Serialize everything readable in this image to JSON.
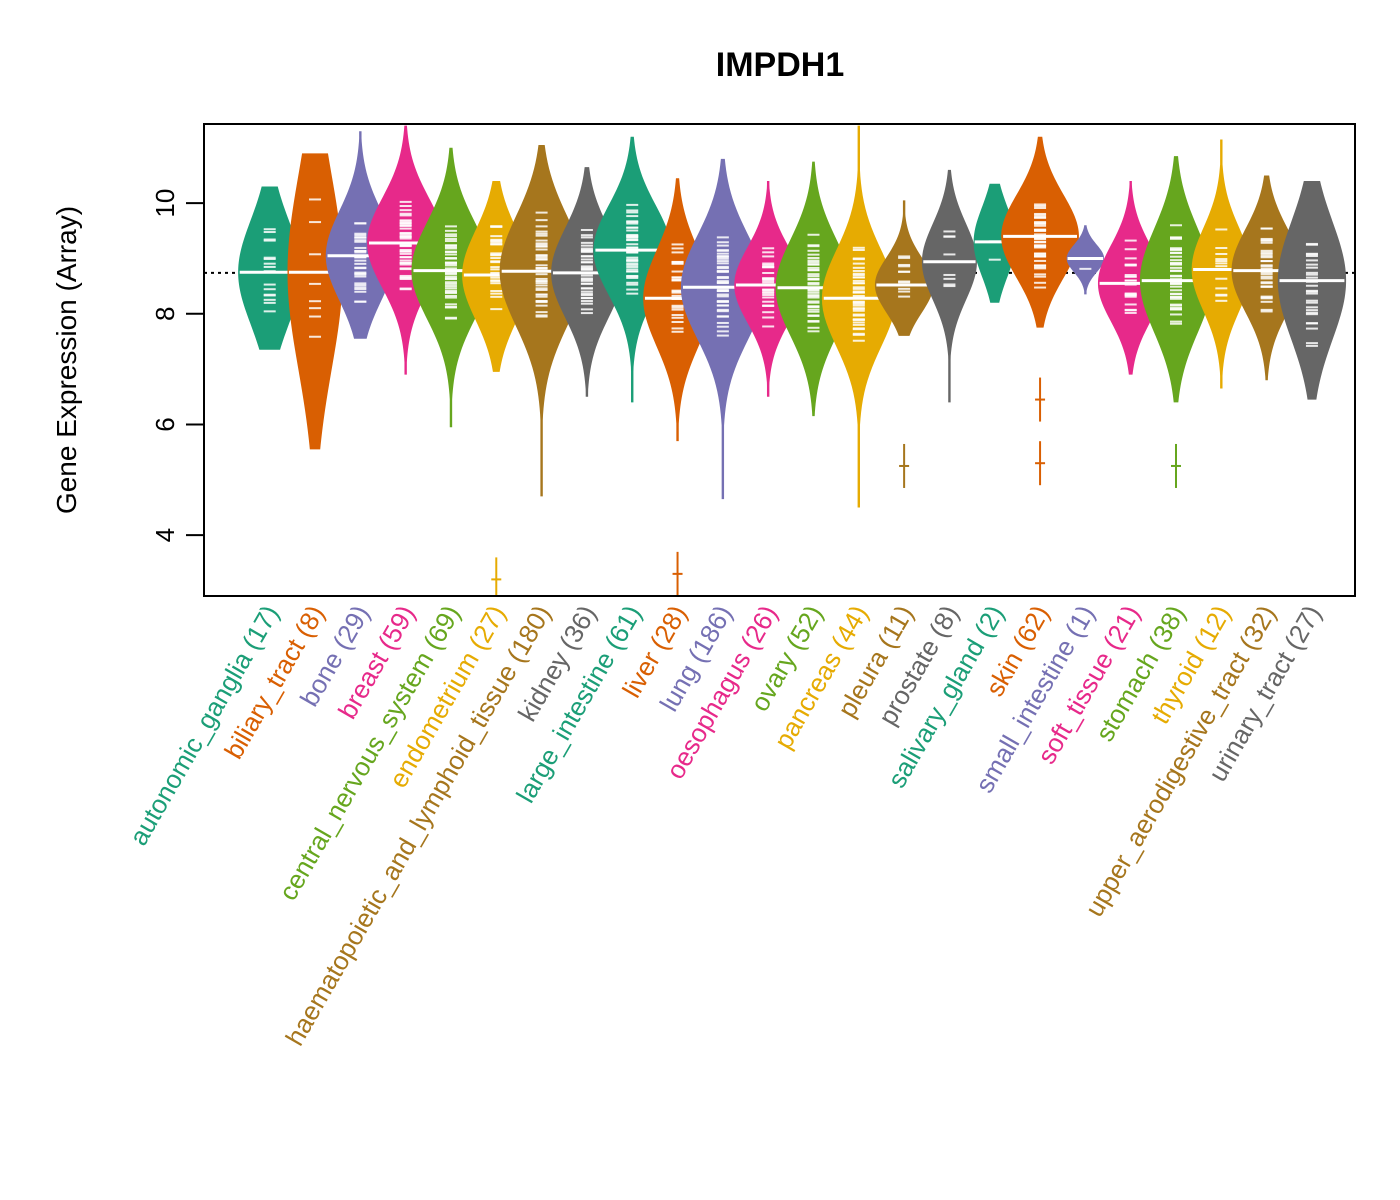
{
  "chart_data": {
    "type": "violin",
    "title": "IMPDH1",
    "xlabel": "",
    "ylabel": "Gene Expression (Array)",
    "ylim": [
      2.9,
      11.43
    ],
    "yticks": [
      4,
      6,
      8,
      10
    ],
    "reference_line": 8.74,
    "grid": false,
    "legend": "none",
    "categories": [
      {
        "name": "autonomic_ganglia",
        "n": 17,
        "color": "#1B9E77",
        "median": 8.75,
        "min": 7.35,
        "max": 10.3,
        "q_low": 8.0,
        "q_high": 9.5,
        "outliers": []
      },
      {
        "name": "biliary_tract",
        "n": 8,
        "color": "#D95F02",
        "median": 8.75,
        "min": 5.55,
        "max": 10.9,
        "q_low": 7.2,
        "q_high": 10.0,
        "outliers": []
      },
      {
        "name": "bone",
        "n": 29,
        "color": "#7570B3",
        "median": 9.05,
        "min": 7.55,
        "max": 11.3,
        "q_low": 8.3,
        "q_high": 9.6,
        "outliers": []
      },
      {
        "name": "breast",
        "n": 59,
        "color": "#E7298A",
        "median": 9.28,
        "min": 6.9,
        "max": 11.4,
        "q_low": 8.6,
        "q_high": 9.9,
        "outliers": []
      },
      {
        "name": "central_nervous_system",
        "n": 69,
        "color": "#66A61E",
        "median": 8.78,
        "min": 5.95,
        "max": 11.0,
        "q_low": 8.1,
        "q_high": 9.5,
        "outliers": []
      },
      {
        "name": "endometrium",
        "n": 27,
        "color": "#E6AB02",
        "median": 8.7,
        "min": 6.95,
        "max": 10.4,
        "q_low": 8.3,
        "q_high": 9.6,
        "outliers": [
          3.2
        ]
      },
      {
        "name": "haematopoietic_and_lymphoid_tissue",
        "n": 180,
        "color": "#A6761D",
        "median": 8.77,
        "min": 4.7,
        "max": 11.05,
        "q_low": 8.0,
        "q_high": 9.6,
        "outliers": []
      },
      {
        "name": "kidney",
        "n": 36,
        "color": "#666666",
        "median": 8.74,
        "min": 6.5,
        "max": 10.65,
        "q_low": 8.1,
        "q_high": 9.4,
        "outliers": []
      },
      {
        "name": "large_intestine",
        "n": 61,
        "color": "#1B9E77",
        "median": 9.15,
        "min": 6.4,
        "max": 11.2,
        "q_low": 8.5,
        "q_high": 9.8,
        "outliers": []
      },
      {
        "name": "liver",
        "n": 28,
        "color": "#D95F02",
        "median": 8.28,
        "min": 5.7,
        "max": 10.45,
        "q_low": 7.8,
        "q_high": 9.2,
        "outliers": [
          3.3
        ]
      },
      {
        "name": "lung",
        "n": 186,
        "color": "#7570B3",
        "median": 8.48,
        "min": 4.65,
        "max": 10.8,
        "q_low": 7.8,
        "q_high": 9.3,
        "outliers": []
      },
      {
        "name": "oesophagus",
        "n": 26,
        "color": "#E7298A",
        "median": 8.52,
        "min": 6.5,
        "max": 10.4,
        "q_low": 8.0,
        "q_high": 9.1,
        "outliers": []
      },
      {
        "name": "ovary",
        "n": 52,
        "color": "#66A61E",
        "median": 8.47,
        "min": 6.15,
        "max": 10.75,
        "q_low": 7.8,
        "q_high": 9.2,
        "outliers": []
      },
      {
        "name": "pancreas",
        "n": 44,
        "color": "#E6AB02",
        "median": 8.28,
        "min": 4.5,
        "max": 11.4,
        "q_low": 7.6,
        "q_high": 9.0,
        "outliers": []
      },
      {
        "name": "pleura",
        "n": 11,
        "color": "#A6761D",
        "median": 8.52,
        "min": 7.6,
        "max": 10.05,
        "q_low": 8.3,
        "q_high": 9.1,
        "outliers": [
          5.25
        ]
      },
      {
        "name": "prostate",
        "n": 8,
        "color": "#666666",
        "median": 8.94,
        "min": 6.4,
        "max": 10.6,
        "q_low": 8.4,
        "q_high": 9.5,
        "outliers": []
      },
      {
        "name": "salivary_gland",
        "n": 2,
        "color": "#1B9E77",
        "median": 9.3,
        "min": 8.2,
        "max": 10.35,
        "q_low": 8.8,
        "q_high": 9.8,
        "outliers": []
      },
      {
        "name": "skin",
        "n": 62,
        "color": "#D95F02",
        "median": 9.4,
        "min": 7.75,
        "max": 11.2,
        "q_low": 8.7,
        "q_high": 9.9,
        "outliers": [
          6.45,
          5.3
        ]
      },
      {
        "name": "small_intestine",
        "n": 1,
        "color": "#7570B3",
        "median": 9.0,
        "min": 8.35,
        "max": 9.6,
        "q_low": 8.8,
        "q_high": 9.2,
        "outliers": []
      },
      {
        "name": "soft_tissue",
        "n": 21,
        "color": "#E7298A",
        "median": 8.55,
        "min": 6.9,
        "max": 10.4,
        "q_low": 8.0,
        "q_high": 9.1,
        "outliers": []
      },
      {
        "name": "stomach",
        "n": 38,
        "color": "#66A61E",
        "median": 8.6,
        "min": 6.4,
        "max": 10.85,
        "q_low": 7.9,
        "q_high": 9.4,
        "outliers": [
          5.25
        ]
      },
      {
        "name": "thyroid",
        "n": 12,
        "color": "#E6AB02",
        "median": 8.8,
        "min": 6.65,
        "max": 11.15,
        "q_low": 8.2,
        "q_high": 9.4,
        "outliers": []
      },
      {
        "name": "upper_aerodigestive_tract",
        "n": 32,
        "color": "#A6761D",
        "median": 8.78,
        "min": 6.8,
        "max": 10.5,
        "q_low": 8.2,
        "q_high": 9.4,
        "outliers": []
      },
      {
        "name": "urinary_tract",
        "n": 27,
        "color": "#666666",
        "median": 8.6,
        "min": 6.45,
        "max": 10.4,
        "q_low": 7.6,
        "q_high": 9.3,
        "outliers": []
      }
    ]
  }
}
